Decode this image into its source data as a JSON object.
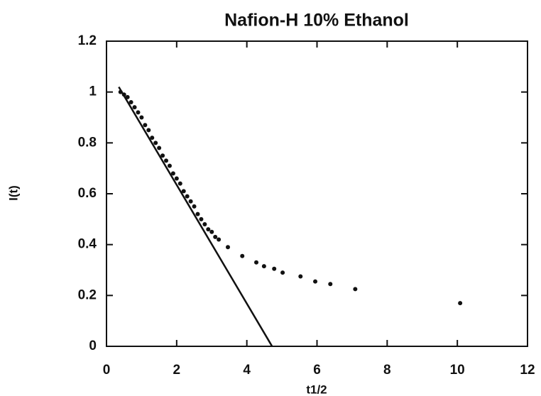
{
  "chart_data": {
    "type": "scatter",
    "title": "Nafion-H  10%  Ethanol",
    "x_label": "t1/2",
    "y_label": "I(t)",
    "xlim": [
      0,
      12
    ],
    "ylim": [
      0,
      1.2
    ],
    "xticks": [
      0,
      2,
      4,
      6,
      8,
      10,
      12
    ],
    "yticks": [
      0,
      0.2,
      0.4,
      0.6,
      0.8,
      1,
      1.2
    ],
    "color": "#111111",
    "x": [
      0.4,
      0.5,
      0.6,
      0.7,
      0.8,
      0.9,
      1.0,
      1.1,
      1.2,
      1.3,
      1.4,
      1.5,
      1.6,
      1.7,
      1.8,
      1.9,
      2.0,
      2.1,
      2.2,
      2.3,
      2.4,
      2.5,
      2.6,
      2.7,
      2.8,
      2.9,
      3.0,
      3.1,
      3.2,
      3.46,
      3.87,
      4.27,
      4.49,
      4.78,
      5.02,
      5.53,
      5.95,
      6.38,
      7.09,
      10.08
    ],
    "values": [
      1.0,
      0.99,
      0.98,
      0.96,
      0.94,
      0.92,
      0.9,
      0.87,
      0.85,
      0.82,
      0.8,
      0.78,
      0.75,
      0.73,
      0.71,
      0.68,
      0.66,
      0.64,
      0.61,
      0.59,
      0.57,
      0.55,
      0.52,
      0.5,
      0.48,
      0.46,
      0.45,
      0.43,
      0.42,
      0.39,
      0.355,
      0.33,
      0.315,
      0.305,
      0.29,
      0.275,
      0.255,
      0.245,
      0.225,
      0.17
    ],
    "fit": {
      "x": [
        0.35,
        4.72
      ],
      "values": [
        1.02,
        0
      ]
    }
  }
}
